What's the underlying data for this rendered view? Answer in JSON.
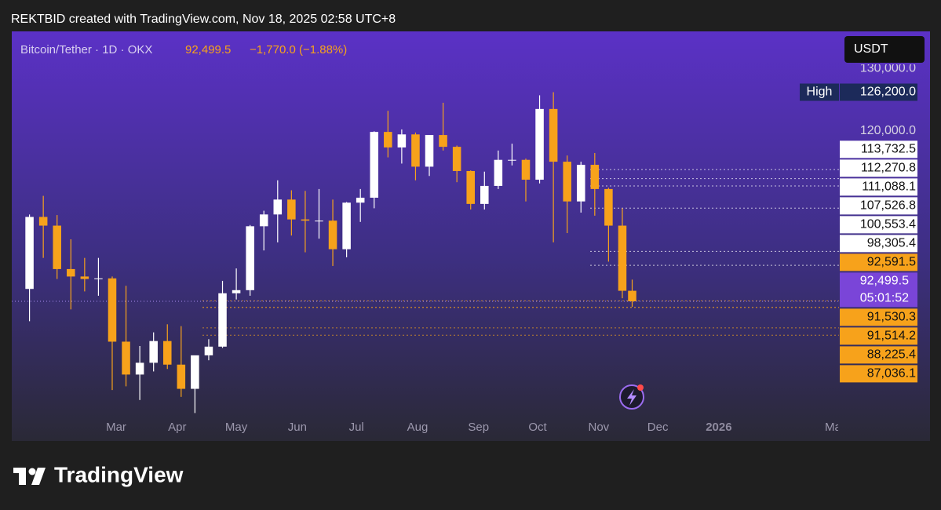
{
  "header": {
    "attribution": "REKTBID created with TradingView.com, Nov 18, 2025 02:58 UTC+8"
  },
  "footer": {
    "brand": "TradingView"
  },
  "chart_data": {
    "type": "candlestick",
    "title": "Bitcoin/Tether · 1D · OKX",
    "price_text": "92,499.5",
    "change_text": "−1,770.0 (−1.88%)",
    "currency": "USDT",
    "x": [
      16,
      23,
      30,
      37,
      44,
      51,
      58,
      65,
      72,
      79,
      86,
      93,
      100,
      107,
      114,
      121,
      128,
      135,
      142,
      149,
      156,
      163,
      170,
      177,
      184,
      191,
      198,
      205,
      212,
      219,
      226,
      233,
      240,
      247,
      254,
      261,
      268,
      275,
      282,
      289,
      296,
      303,
      310,
      317,
      322
    ],
    "open": [
      94500,
      106100,
      104700,
      97700,
      96500,
      96100,
      96200,
      86000,
      80700,
      82600,
      86100,
      82300,
      78400,
      83800,
      85200,
      93800,
      94300,
      104600,
      106500,
      108900,
      105700,
      105500,
      105500,
      100900,
      108400,
      109200,
      119800,
      117300,
      119400,
      114200,
      119300,
      117400,
      113500,
      108200,
      111100,
      115300,
      115300,
      112100,
      123500,
      115000,
      108600,
      114500,
      110600,
      104700,
      94200
    ],
    "high": [
      106500,
      109500,
      106400,
      102500,
      99500,
      99500,
      96500,
      95000,
      85300,
      87500,
      88800,
      88500,
      83600,
      86400,
      95800,
      97800,
      104800,
      107100,
      112000,
      110400,
      110300,
      110600,
      108900,
      108500,
      110600,
      119900,
      123200,
      120200,
      119700,
      119300,
      124500,
      117600,
      113600,
      113400,
      116800,
      117900,
      115500,
      125700,
      126200,
      116000,
      115000,
      116400,
      110800,
      107500,
      96000
    ],
    "low": [
      89300,
      99500,
      96100,
      91200,
      94100,
      93400,
      78200,
      78800,
      76600,
      81200,
      81600,
      77100,
      74500,
      83000,
      85000,
      92800,
      93400,
      100700,
      102000,
      103100,
      100400,
      102600,
      98200,
      99600,
      105300,
      107500,
      115700,
      114700,
      112000,
      112700,
      116800,
      111700,
      107300,
      107300,
      110600,
      114400,
      108600,
      111500,
      102000,
      103500,
      106800,
      106300,
      98900,
      93000,
      91600
    ],
    "close": [
      106100,
      104700,
      97700,
      96500,
      96100,
      96200,
      86000,
      80700,
      82600,
      86100,
      82300,
      78400,
      83800,
      85200,
      93800,
      94300,
      104600,
      106500,
      108900,
      105700,
      105500,
      105500,
      100900,
      108400,
      109200,
      119800,
      117300,
      119400,
      114200,
      119300,
      117400,
      113500,
      108200,
      111100,
      115300,
      115300,
      112100,
      123500,
      115000,
      108600,
      114500,
      110600,
      104700,
      94200,
      92499.5
    ],
    "up_color": "#ffffff",
    "down_color": "#f7a21b",
    "xlim": [
      7,
      427
    ],
    "xticks": [
      {
        "value": 60,
        "label": "Mar"
      },
      {
        "value": 91,
        "label": "Apr"
      },
      {
        "value": 121,
        "label": "May"
      },
      {
        "value": 152,
        "label": "Jun"
      },
      {
        "value": 182,
        "label": "Jul"
      },
      {
        "value": 213,
        "label": "Aug"
      },
      {
        "value": 244,
        "label": "Sep"
      },
      {
        "value": 274,
        "label": "Oct"
      },
      {
        "value": 305,
        "label": "Nov"
      },
      {
        "value": 335,
        "label": "Dec"
      },
      {
        "value": 366,
        "label": "2026"
      },
      {
        "value": 425,
        "label": "Mar"
      }
    ],
    "ylim": [
      70000,
      136000
    ],
    "yticks": [
      {
        "value": 130000,
        "label": "130,000.0"
      },
      {
        "value": 120000,
        "label": "120,000.0"
      }
    ],
    "high_marker": {
      "name": "High",
      "value": 126200,
      "label": "126,200.0"
    },
    "current_price": {
      "value": 92499.5,
      "label": "92,499.5",
      "countdown": "05:01:52",
      "color": "#7a45d8"
    },
    "price_levels": [
      {
        "value": 113732.5,
        "label": "113,732.5",
        "color": "#ffffff"
      },
      {
        "value": 112270.8,
        "label": "112,270.8",
        "color": "#ffffff"
      },
      {
        "value": 111088.1,
        "label": "111,088.1",
        "color": "#ffffff"
      },
      {
        "value": 107526.8,
        "label": "107,526.8",
        "color": "#ffffff"
      },
      {
        "value": 100553.4,
        "label": "100,553.4",
        "color": "#ffffff"
      },
      {
        "value": 98305.4,
        "label": "98,305.4",
        "color": "#ffffff"
      },
      {
        "value": 92591.5,
        "label": "92,591.5",
        "color": "#f7a21b"
      },
      {
        "value": 91530.3,
        "label": "91,530.3",
        "color": "#f7a21b"
      },
      {
        "value": 91514.2,
        "label": "91,514.2",
        "color": "#f7a21b"
      },
      {
        "value": 88225.4,
        "label": "88,225.4",
        "color": "#f7a21b"
      },
      {
        "value": 87036.1,
        "label": "87,036.1",
        "color": "#f7a21b"
      }
    ]
  }
}
